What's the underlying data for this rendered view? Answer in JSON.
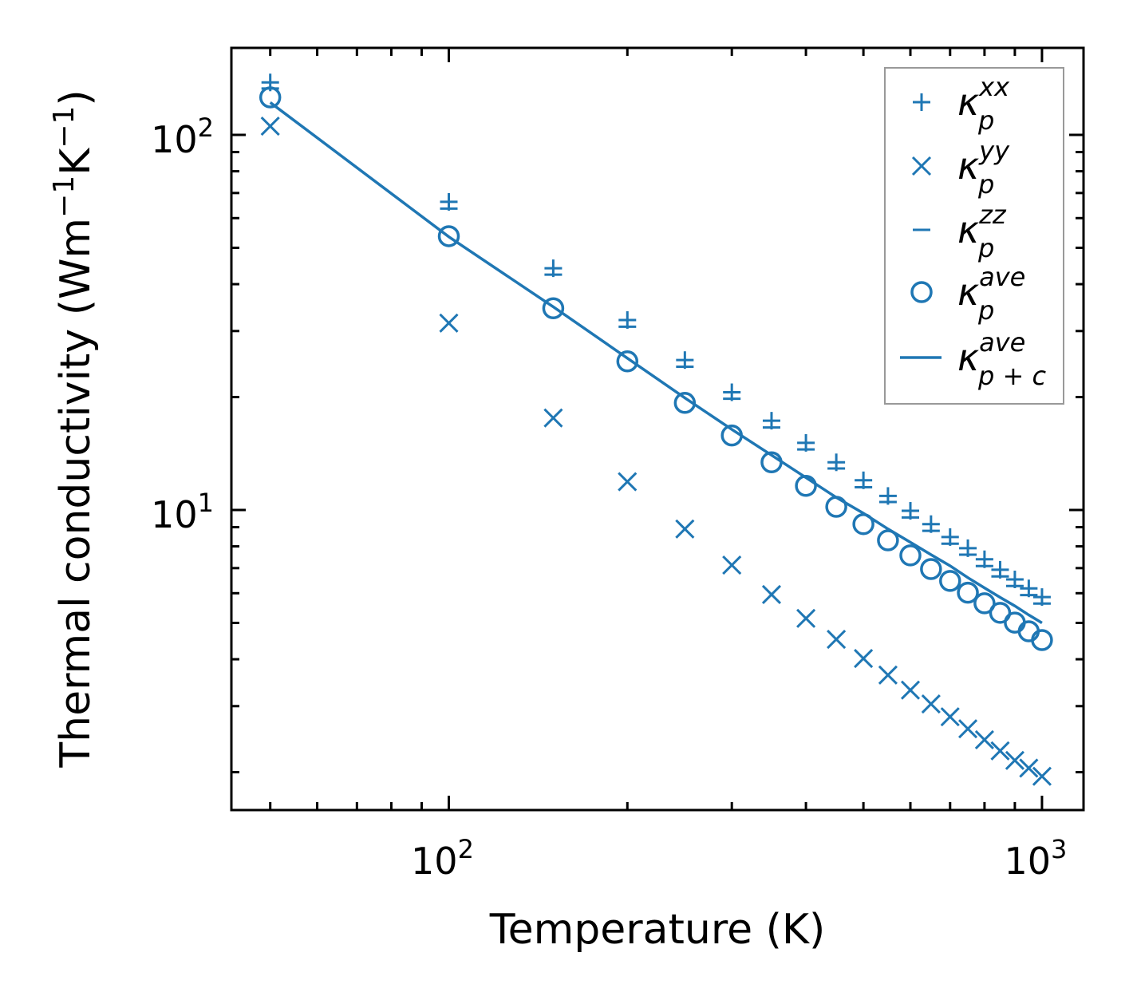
{
  "chart_data": {
    "type": "scatter",
    "title": "",
    "xlabel": "Temperature (K)",
    "ylabel": "Thermal conductivity (Wm⁻¹K⁻¹)",
    "ylabel_parts": {
      "base": "Thermal conductivity (Wm",
      "sup1": "−1",
      "mid": "K",
      "sup2": "−1",
      "end": ")"
    },
    "xscale": "log",
    "yscale": "log",
    "xlim": [
      43,
      1175
    ],
    "ylim": [
      1.585,
      170.6
    ],
    "grid": false,
    "legend_position": "top-right",
    "xticks": [
      {
        "value": 100,
        "base": "10",
        "exp": "2"
      },
      {
        "value": 1000,
        "base": "10",
        "exp": "3"
      }
    ],
    "yticks": [
      {
        "value": 10,
        "base": "10",
        "exp": "1"
      },
      {
        "value": 100,
        "base": "10",
        "exp": "2"
      }
    ],
    "x": [
      50,
      100,
      150,
      200,
      250,
      300,
      350,
      400,
      450,
      500,
      550,
      600,
      650,
      700,
      750,
      800,
      850,
      900,
      950,
      1000
    ],
    "color": "#1f77b4",
    "series": [
      {
        "name": "kappa_p_xx",
        "label": {
          "base": "κ",
          "sub": "p",
          "sup": "xx"
        },
        "marker": "plus",
        "values": [
          138,
          66.3,
          44.1,
          32.1,
          25.1,
          20.6,
          17.3,
          15.1,
          13.4,
          12.0,
          10.9,
          9.95,
          9.17,
          8.47,
          7.91,
          7.39,
          6.93,
          6.53,
          6.18,
          5.86
        ]
      },
      {
        "name": "kappa_p_yy",
        "label": {
          "base": "κ",
          "sub": "p",
          "sup": "yy"
        },
        "marker": "x",
        "values": [
          105.5,
          31.5,
          17.6,
          11.9,
          8.9,
          7.13,
          5.95,
          5.14,
          4.52,
          4.02,
          3.63,
          3.31,
          3.04,
          2.81,
          2.61,
          2.44,
          2.28,
          2.15,
          2.05,
          1.95
        ]
      },
      {
        "name": "kappa_p_zz",
        "label": {
          "base": "κ",
          "sub": "p",
          "sup": "zz"
        },
        "marker": "minus",
        "values": [
          133,
          63.6,
          42.4,
          30.8,
          24.1,
          19.8,
          16.6,
          14.5,
          12.9,
          11.5,
          10.5,
          9.55,
          8.8,
          8.13,
          7.6,
          7.09,
          6.65,
          6.27,
          5.93,
          5.63
        ]
      },
      {
        "name": "kappa_p_ave",
        "label": {
          "base": "κ",
          "sub": "p",
          "sup": "ave"
        },
        "marker": "circle",
        "values": [
          125.9,
          53.7,
          34.5,
          24.9,
          19.3,
          15.8,
          13.4,
          11.6,
          10.2,
          9.17,
          8.3,
          7.57,
          6.96,
          6.47,
          6.02,
          5.64,
          5.32,
          5.01,
          4.75,
          4.5
        ]
      },
      {
        "name": "kappa_pc_ave",
        "label": {
          "base": "κ",
          "sub": "p + c",
          "sup": "ave"
        },
        "marker": "line",
        "values": [
          122,
          53.5,
          34.8,
          25.4,
          19.9,
          16.4,
          14.0,
          12.2,
          10.8,
          9.8,
          8.9,
          8.2,
          7.6,
          7.1,
          6.6,
          6.2,
          5.85,
          5.55,
          5.25,
          5.0
        ]
      }
    ]
  }
}
